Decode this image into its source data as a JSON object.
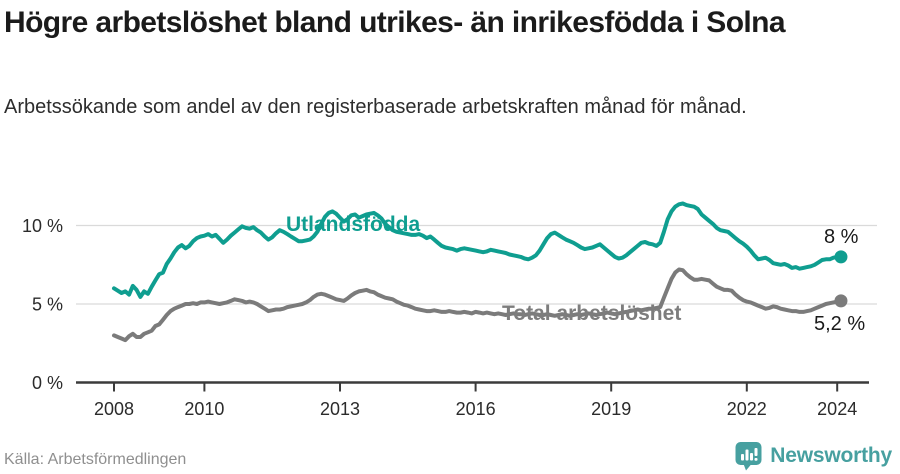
{
  "header": {
    "title": "Högre arbetslöshet bland utrikes- än inrikesfödda i Solna",
    "subtitle": "Arbetssökande som andel av den registerbaserade arbetskraften månad för månad."
  },
  "footer": {
    "source": "Källa: Arbetsförmedlingen",
    "brand_name": "Newsworthy",
    "brand_icon": "bar-chart-speech-bubble-icon"
  },
  "colors": {
    "foreign_born": "#0f9e90",
    "total": "#7b7b7b",
    "total_label": "#7d7d7d",
    "grid": "#dadada",
    "axis": "#3b3b3b",
    "tick_text": "#2b2b2b",
    "end_label_text": "#1a1a1a",
    "brand": "#47a0a0"
  },
  "chart_data": {
    "type": "line",
    "title": "Högre arbetslöshet bland utrikes- än inrikesfödda i Solna",
    "subtitle": "Arbetssökande som andel av den registerbaserade arbetskraften månad för månad.",
    "xlabel": "",
    "ylabel": "",
    "grid": "horizontal",
    "legend_position": "inline-labels",
    "start": "2008-01",
    "frequency": "monthly",
    "xlim": [
      2007.2,
      2025.3
    ],
    "ylim": [
      0,
      12.6
    ],
    "x_ticks": [
      2008,
      2010,
      2013,
      2016,
      2019,
      2022,
      2024
    ],
    "x_tick_labels": [
      "2008",
      "2010",
      "2013",
      "2016",
      "2019",
      "2022",
      "2024"
    ],
    "y_ticks": [
      0,
      5,
      10
    ],
    "y_tick_labels": [
      "0 %",
      "5 %",
      "10 %"
    ],
    "series": [
      {
        "name": "Utlandsfödda",
        "color": "#0f9e90",
        "end_label": "8 %",
        "end_value": 8.0,
        "values": [
          6.0,
          5.85,
          5.7,
          5.8,
          5.6,
          6.15,
          5.9,
          5.45,
          5.8,
          5.65,
          6.1,
          6.5,
          6.9,
          7.0,
          7.55,
          7.9,
          8.3,
          8.6,
          8.75,
          8.55,
          8.7,
          9.0,
          9.2,
          9.3,
          9.35,
          9.45,
          9.3,
          9.4,
          9.15,
          8.9,
          9.1,
          9.35,
          9.55,
          9.75,
          9.95,
          9.85,
          9.8,
          9.9,
          9.7,
          9.55,
          9.3,
          9.1,
          9.25,
          9.5,
          9.7,
          9.6,
          9.45,
          9.3,
          9.15,
          9.0,
          9.0,
          9.05,
          9.1,
          9.3,
          9.6,
          10.1,
          10.55,
          10.8,
          10.9,
          10.75,
          10.5,
          10.25,
          10.4,
          10.65,
          10.7,
          10.5,
          10.6,
          10.7,
          10.75,
          10.8,
          10.65,
          10.45,
          10.1,
          9.9,
          9.7,
          9.6,
          9.55,
          9.5,
          9.45,
          9.4,
          9.4,
          9.45,
          9.35,
          9.2,
          9.3,
          9.1,
          8.9,
          8.7,
          8.6,
          8.55,
          8.5,
          8.4,
          8.5,
          8.55,
          8.5,
          8.45,
          8.4,
          8.35,
          8.3,
          8.35,
          8.45,
          8.4,
          8.35,
          8.3,
          8.25,
          8.15,
          8.1,
          8.05,
          8.0,
          7.9,
          7.85,
          7.95,
          8.1,
          8.4,
          8.8,
          9.2,
          9.45,
          9.55,
          9.4,
          9.25,
          9.1,
          9.0,
          8.9,
          8.75,
          8.6,
          8.5,
          8.55,
          8.6,
          8.7,
          8.8,
          8.6,
          8.4,
          8.2,
          8.0,
          7.9,
          7.95,
          8.1,
          8.3,
          8.5,
          8.7,
          8.9,
          8.95,
          8.85,
          8.8,
          8.7,
          8.9,
          9.6,
          10.4,
          10.9,
          11.2,
          11.35,
          11.4,
          11.3,
          11.25,
          11.2,
          11.05,
          10.7,
          10.5,
          10.3,
          10.1,
          9.85,
          9.7,
          9.65,
          9.6,
          9.4,
          9.2,
          9.0,
          8.85,
          8.65,
          8.4,
          8.1,
          7.85,
          7.9,
          7.95,
          7.8,
          7.6,
          7.55,
          7.5,
          7.55,
          7.45,
          7.3,
          7.35,
          7.25,
          7.3,
          7.35,
          7.4,
          7.5,
          7.65,
          7.8,
          7.85,
          7.85,
          7.95,
          8.0,
          8.0
        ]
      },
      {
        "name": "Total arbetslöshet",
        "color": "#7b7b7b",
        "end_label": "5,2 %",
        "end_value": 5.2,
        "values": [
          3.0,
          2.9,
          2.8,
          2.7,
          2.95,
          3.1,
          2.9,
          2.9,
          3.1,
          3.2,
          3.3,
          3.6,
          3.7,
          4.0,
          4.3,
          4.55,
          4.7,
          4.8,
          4.9,
          5.0,
          5.0,
          5.05,
          5.0,
          5.1,
          5.1,
          5.15,
          5.1,
          5.05,
          5.0,
          5.05,
          5.1,
          5.2,
          5.3,
          5.25,
          5.2,
          5.1,
          5.15,
          5.1,
          5.0,
          4.85,
          4.7,
          4.55,
          4.6,
          4.65,
          4.65,
          4.7,
          4.8,
          4.85,
          4.9,
          4.95,
          5.0,
          5.1,
          5.25,
          5.45,
          5.6,
          5.65,
          5.6,
          5.5,
          5.4,
          5.3,
          5.25,
          5.2,
          5.35,
          5.55,
          5.7,
          5.8,
          5.85,
          5.9,
          5.8,
          5.75,
          5.6,
          5.5,
          5.4,
          5.35,
          5.3,
          5.15,
          5.05,
          4.95,
          4.9,
          4.8,
          4.7,
          4.65,
          4.6,
          4.55,
          4.55,
          4.6,
          4.55,
          4.5,
          4.5,
          4.55,
          4.5,
          4.45,
          4.45,
          4.5,
          4.45,
          4.4,
          4.5,
          4.45,
          4.4,
          4.45,
          4.4,
          4.35,
          4.4,
          4.35,
          4.3,
          4.35,
          4.4,
          4.35,
          4.35,
          4.3,
          4.35,
          4.4,
          4.35,
          4.3,
          4.3,
          4.35,
          4.3,
          4.25,
          4.3,
          4.35,
          4.3,
          4.25,
          4.3,
          4.35,
          4.3,
          4.35,
          4.4,
          4.35,
          4.3,
          4.35,
          4.4,
          4.45,
          4.4,
          4.35,
          4.4,
          4.45,
          4.5,
          4.55,
          4.6,
          4.65,
          4.6,
          4.65,
          4.7,
          4.7,
          4.75,
          4.8,
          5.4,
          6.0,
          6.6,
          7.0,
          7.2,
          7.15,
          6.9,
          6.7,
          6.55,
          6.55,
          6.6,
          6.55,
          6.5,
          6.3,
          6.1,
          6.0,
          5.9,
          5.9,
          5.85,
          5.6,
          5.4,
          5.25,
          5.15,
          5.1,
          5.0,
          4.9,
          4.8,
          4.7,
          4.75,
          4.85,
          4.8,
          4.7,
          4.65,
          4.6,
          4.55,
          4.55,
          4.5,
          4.5,
          4.55,
          4.6,
          4.7,
          4.8,
          4.9,
          5.0,
          5.05,
          5.1,
          5.15,
          5.2
        ]
      }
    ]
  }
}
